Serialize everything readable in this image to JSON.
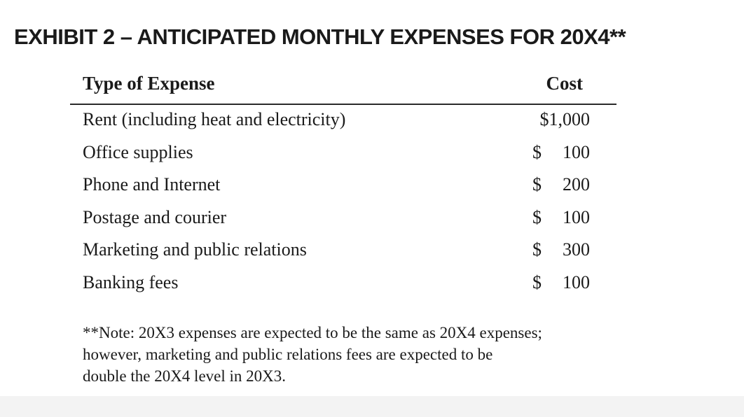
{
  "exhibit": {
    "title": "EXHIBIT 2 – ANTICIPATED MONTHLY EXPENSES FOR 20X4**"
  },
  "table": {
    "headers": {
      "type": "Type of Expense",
      "cost": "Cost"
    },
    "rows": [
      {
        "label": "Rent (including heat and electricity)",
        "currency": "",
        "amount": "$1,000"
      },
      {
        "label": "Office supplies",
        "currency": "$",
        "amount": "100"
      },
      {
        "label": "Phone and Internet",
        "currency": "$",
        "amount": "200"
      },
      {
        "label": "Postage and courier",
        "currency": "$",
        "amount": "100"
      },
      {
        "label": "Marketing and public relations",
        "currency": "$",
        "amount": "300"
      },
      {
        "label": "Banking fees",
        "currency": "$",
        "amount": "100"
      }
    ]
  },
  "note": {
    "lines": [
      "**Note: 20X3 expenses are expected to be the same as 20X4 expenses;",
      "however, marketing and public relations fees are expected to be",
      "double the 20X4 level in 20X3."
    ]
  }
}
